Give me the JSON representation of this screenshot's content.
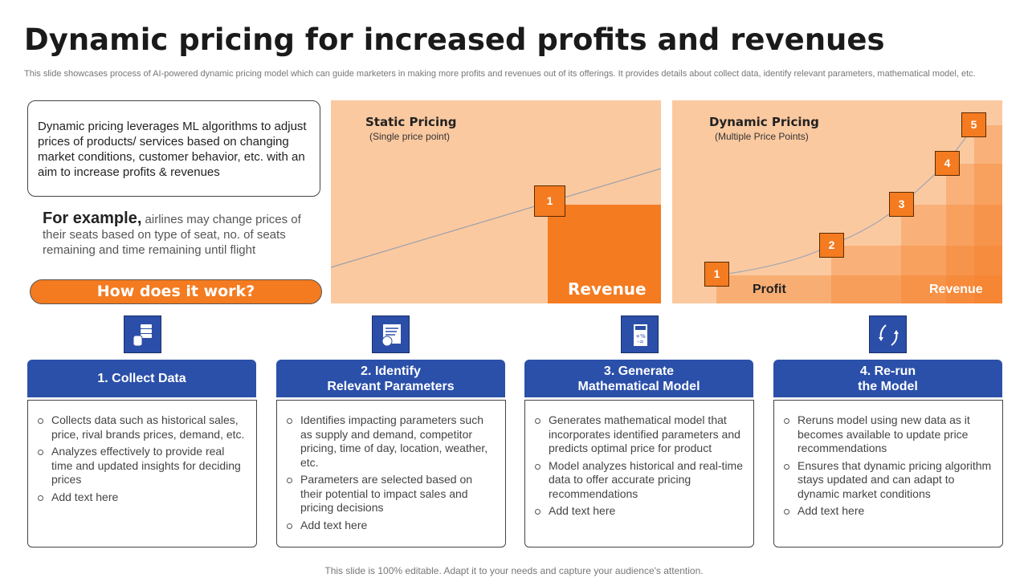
{
  "title": "Dynamic pricing for increased profits and revenues",
  "subtitle": "This slide showcases process of AI-powered dynamic pricing model which can guide marketers in making more profits and revenues out of its offerings. It provides details about collect data, identify relevant parameters, mathematical model, etc.",
  "intro": "Dynamic pricing leverages ML algorithms to adjust prices of products/ services based on changing market conditions, customer behavior, etc. with an aim to increase profits & revenues",
  "example": {
    "lead": "For example,",
    "text": " airlines may change prices of their seats based on type of seat, no. of seats remaining and time remaining until flight"
  },
  "how_button": "How does it work?",
  "static": {
    "title": "Static Pricing",
    "subtitle": "(Single price point)",
    "point": "1",
    "revenue": "Revenue"
  },
  "dynamic": {
    "title": "Dynamic Pricing",
    "subtitle": "(Multiple Price Points)",
    "points": [
      "1",
      "2",
      "3",
      "4",
      "5"
    ],
    "profit": "Profit",
    "revenue": "Revenue"
  },
  "colors": {
    "orange": "#f47b20",
    "peach": "#fbc9a0",
    "blue": "#2b50aa"
  },
  "steps": [
    {
      "icon": "database-icon",
      "title": "1. Collect Data",
      "bullets": [
        "Collects data such as historical sales, price, rival brands prices, demand, etc.",
        "Analyzes effectively to provide real time and updated insights for deciding prices",
        "Add text here"
      ]
    },
    {
      "icon": "document-gear-icon",
      "title": "2. Identify\nRelevant Parameters",
      "bullets": [
        "Identifies impacting parameters such as supply and demand, competitor pricing, time of day, location, weather, etc.",
        "Parameters are selected based on their potential to impact sales and pricing decisions",
        "Add text here"
      ]
    },
    {
      "icon": "calculator-icon",
      "title": "3. Generate\nMathematical Model",
      "bullets": [
        "Generates mathematical model that incorporates identified parameters and predicts optimal price for product",
        "Model analyzes historical and real-time data to offer accurate pricing recommendations",
        "Add text here"
      ]
    },
    {
      "icon": "refresh-icon",
      "title": "4. Re-run\nthe Model",
      "bullets": [
        "Reruns model using new data as it becomes available to update price recommendations",
        "Ensures that dynamic pricing algorithm stays updated and can adapt to dynamic market conditions",
        "Add text here"
      ]
    }
  ],
  "footer": "This slide is 100% editable. Adapt it to your needs and capture your audience's attention."
}
